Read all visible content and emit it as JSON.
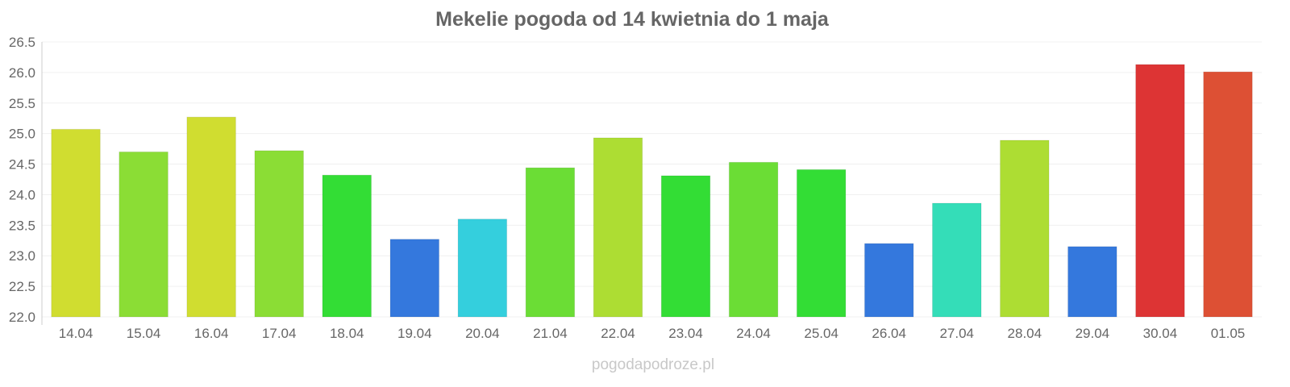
{
  "chart_data": {
    "type": "bar",
    "title": "Mekelie pogoda od 14 kwietnia do 1 maja",
    "xlabel": "",
    "ylabel": "",
    "ylim": [
      22.0,
      26.5
    ],
    "yticks": [
      "22.0",
      "22.5",
      "23.0",
      "23.5",
      "24.0",
      "24.5",
      "25.0",
      "25.5",
      "26.0",
      "26.5"
    ],
    "grid": true,
    "categories": [
      "14.04",
      "15.04",
      "16.04",
      "17.04",
      "18.04",
      "19.04",
      "20.04",
      "21.04",
      "22.04",
      "23.04",
      "24.04",
      "25.04",
      "26.04",
      "27.04",
      "28.04",
      "29.04",
      "30.04",
      "01.05"
    ],
    "values": [
      25.07,
      24.7,
      25.27,
      24.72,
      24.32,
      23.27,
      23.6,
      24.44,
      24.93,
      24.31,
      24.53,
      24.41,
      23.2,
      23.86,
      24.89,
      23.15,
      26.13,
      26.01
    ],
    "colors": [
      "#d0dd30",
      "#8bdd35",
      "#d0dd30",
      "#8bdd35",
      "#33dd35",
      "#3478dd",
      "#34cfdd",
      "#6bdd35",
      "#addd33",
      "#33dd35",
      "#6bdd35",
      "#33dd35",
      "#3478dd",
      "#34ddb8",
      "#addd33",
      "#3478dd",
      "#dd3434",
      "#dd5034"
    ]
  },
  "watermark": "pogodapodroze.pl"
}
